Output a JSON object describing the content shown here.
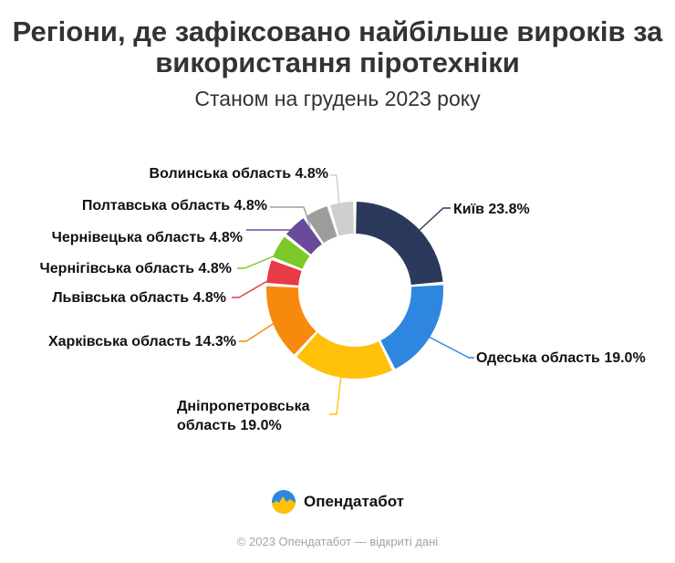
{
  "title_line1": "Регіони, де зафіксовано найбільше вироків за",
  "title_line2": "використання піротехніки",
  "subtitle": "Станом на грудень 2023 року",
  "brand": "Опендатабот",
  "footer": "© 2023 Опендатабот — відкриті дані",
  "chart_data": {
    "type": "pie",
    "donut": true,
    "unit": "%",
    "slices": [
      {
        "label": "Київ",
        "value": 23.8,
        "color": "#2b3a5c"
      },
      {
        "label": "Одеська область",
        "value": 19.0,
        "color": "#2f86e0"
      },
      {
        "label": "Дніпропетровська область",
        "value": 19.0,
        "color": "#ffc107"
      },
      {
        "label": "Харківська область",
        "value": 14.3,
        "color": "#f7890c"
      },
      {
        "label": "Львівська область",
        "value": 4.8,
        "color": "#e83a47"
      },
      {
        "label": "Чернігівська область",
        "value": 4.8,
        "color": "#7dc92a"
      },
      {
        "label": "Чернівецька область",
        "value": 4.8,
        "color": "#6a4a9a"
      },
      {
        "label": "Полтавська область",
        "value": 4.8,
        "color": "#9d9d9d"
      },
      {
        "label": "Волинська область",
        "value": 4.8,
        "color": "#cfcfcf"
      }
    ],
    "label_texts": [
      [
        "Київ 23.8%"
      ],
      [
        "Одеська область 19.0%"
      ],
      [
        "Дніпропетровська",
        "область 19.0%"
      ],
      [
        "Харківська область 14.3%"
      ],
      [
        "Львівська область 4.8%"
      ],
      [
        "Чернігівська область 4.8%"
      ],
      [
        "Чернівецька область 4.8%"
      ],
      [
        "Полтавська область 4.8%"
      ],
      [
        "Волинська область 4.8%"
      ]
    ]
  }
}
